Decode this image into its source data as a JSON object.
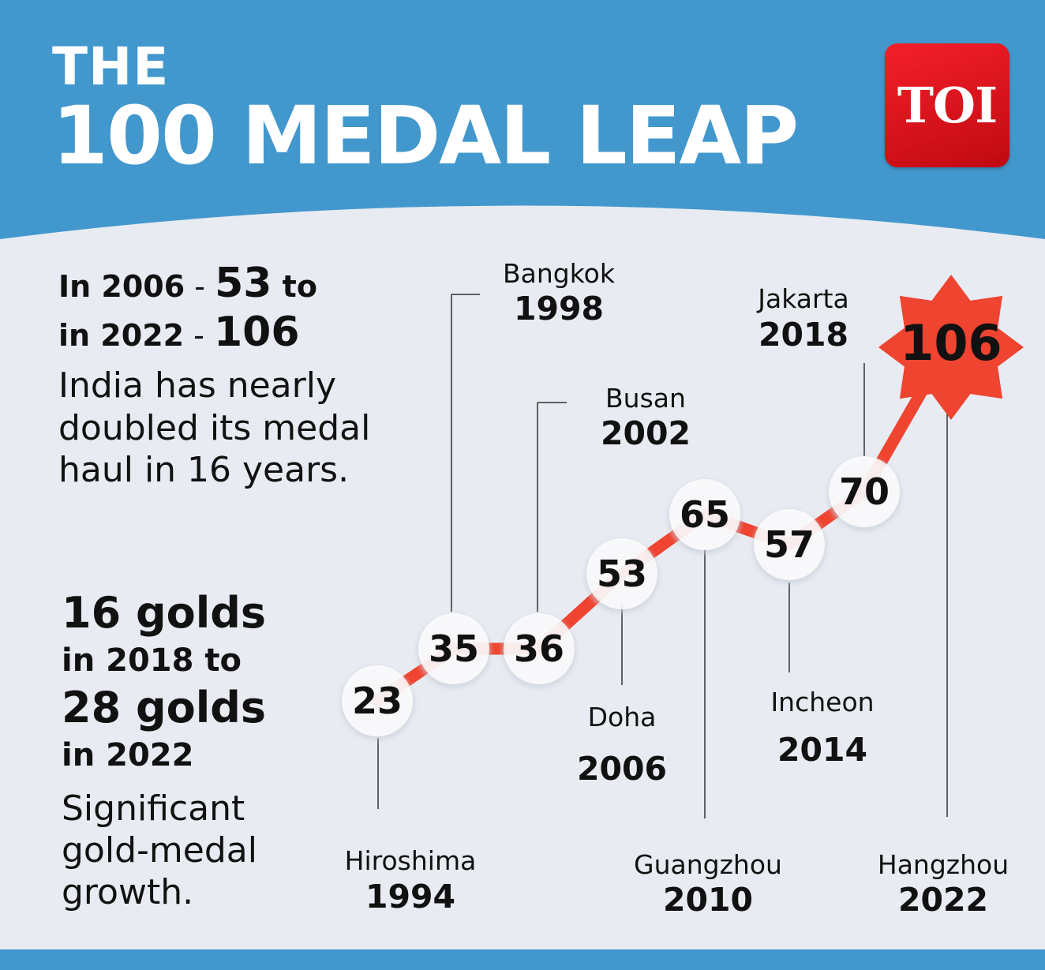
{
  "header": {
    "title_line1": "THE",
    "title_line2": "100 MEDAL LEAP",
    "logo_text": "TOI"
  },
  "left_panel": {
    "highlight1": {
      "p1": "In 2006",
      "s1": " - ",
      "v1": "53",
      "p2": " to",
      "p3": "in 2022",
      "s2": " - ",
      "v2": "106"
    },
    "description1": "India has nearly doubled its medal haul in 16 years.",
    "highlight2": {
      "line1": "16 golds",
      "line2": "in 2018 to",
      "line3": "28 golds",
      "line4": "in 2022"
    },
    "description2": "Significant gold-medal growth."
  },
  "colors": {
    "header_blue": "#4298cd",
    "line_red": "#ee4430",
    "star_red": "#ee4430",
    "background": "#e8ebf1"
  },
  "chart_data": {
    "type": "line",
    "x": [
      1994,
      1998,
      2002,
      2006,
      2010,
      2014,
      2018,
      2022
    ],
    "values": [
      23,
      35,
      36,
      53,
      65,
      57,
      70,
      106
    ],
    "point_labels": [
      "23",
      "35",
      "36",
      "53",
      "65",
      "57",
      "70",
      "106"
    ],
    "cities": [
      "Hiroshima",
      "Bangkok",
      "Busan",
      "Doha",
      "Guangzhou",
      "Incheon",
      "Jakarta",
      "Hangzhou"
    ],
    "years": [
      "1994",
      "1998",
      "2002",
      "2006",
      "2010",
      "2014",
      "2018",
      "2022"
    ],
    "highlight_last_point": true,
    "axes_visible": false,
    "grid": false
  }
}
